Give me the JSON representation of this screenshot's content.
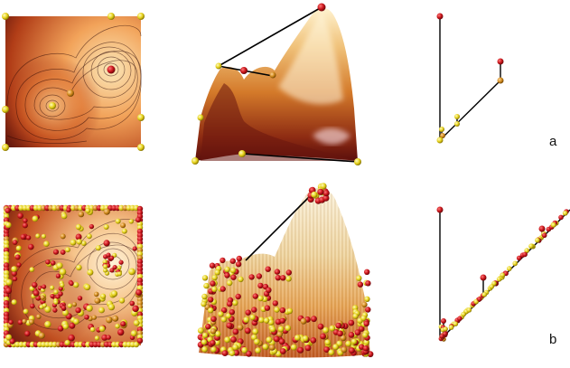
{
  "labels": {
    "row_a": "a",
    "row_b": "b"
  },
  "colors": {
    "background": "#ffffff",
    "field_dark": "#5a0f0c",
    "field_mid": "#c0481a",
    "field_light": "#f2a35a",
    "field_peak": "#fbe7b8",
    "maximum_sphere": "#c8141a",
    "saddle_sphere": "#d08a1c",
    "minimum_sphere": "#e6d21a",
    "pair_line": "#000000"
  },
  "icons": {
    "maximum": "red-sphere-icon",
    "saddle": "orange-sphere-icon",
    "minimum": "yellow-sphere-icon"
  }
}
